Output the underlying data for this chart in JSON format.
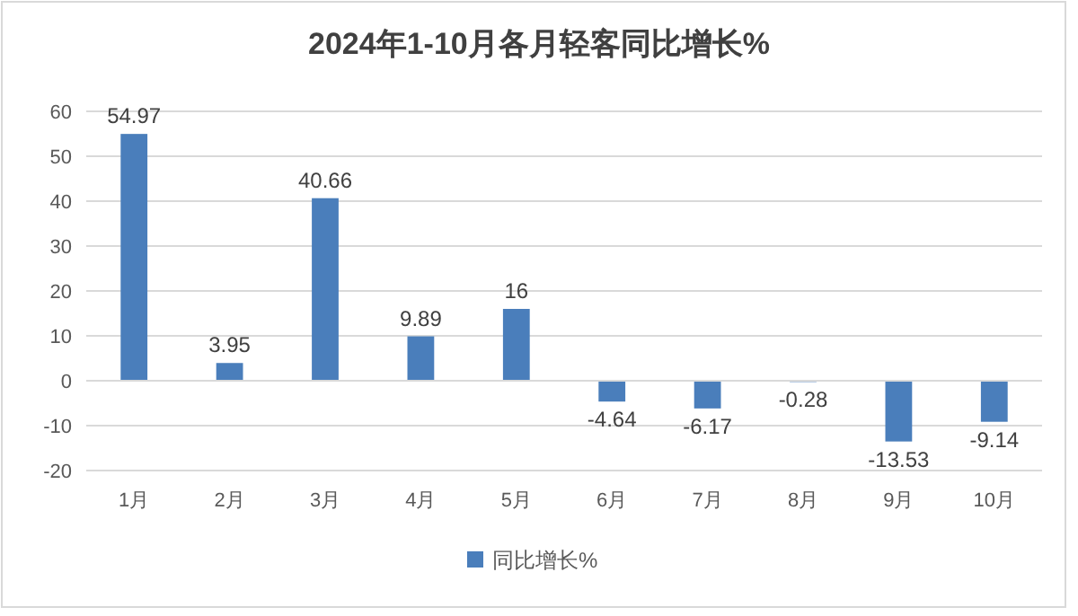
{
  "chart_data": {
    "type": "bar",
    "title": "2024年1-10月各月轻客同比增长%",
    "categories": [
      "1月",
      "2月",
      "3月",
      "4月",
      "5月",
      "6月",
      "7月",
      "8月",
      "9月",
      "10月"
    ],
    "series": [
      {
        "name": "同比增长%",
        "color": "#4a7ebb",
        "values": [
          54.97,
          3.95,
          40.66,
          9.89,
          16,
          -4.64,
          -6.17,
          -0.28,
          -13.53,
          -9.14
        ]
      }
    ],
    "ylim": [
      -20,
      60
    ],
    "yticks": [
      -20,
      -10,
      0,
      10,
      20,
      30,
      40,
      50,
      60
    ],
    "grid": "y",
    "legend": "bottom",
    "data_labels": true
  }
}
